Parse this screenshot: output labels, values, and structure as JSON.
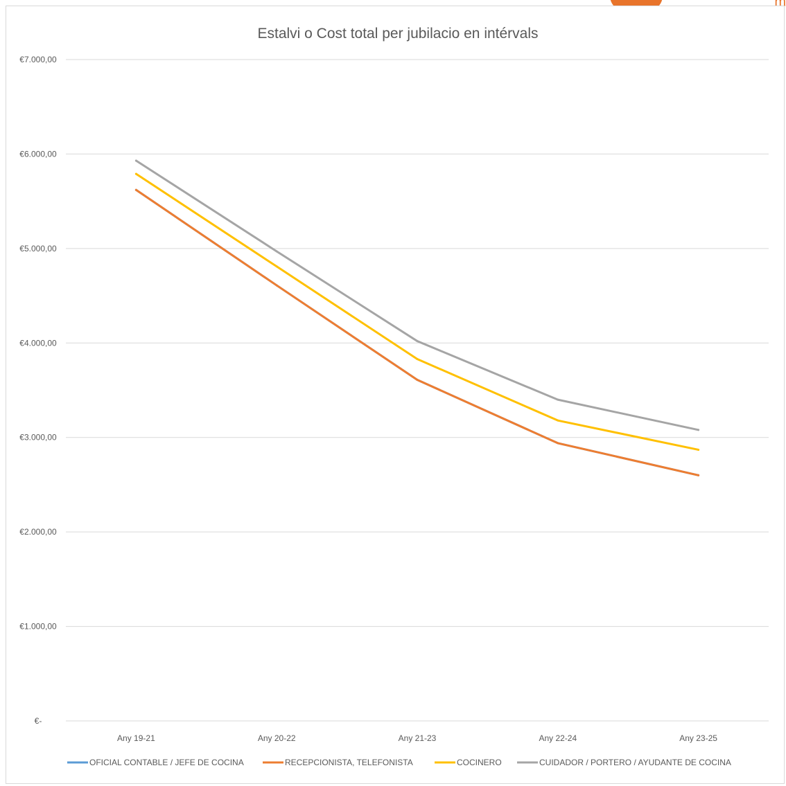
{
  "chart_data": {
    "type": "line",
    "title": "Estalvi o Cost total per jubilacio en intérvals",
    "categories": [
      "Any 19-21",
      "Any 20-22",
      "Any 21-23",
      "Any 22-24",
      "Any 23-25"
    ],
    "y_ticks": [
      {
        "value": 0,
        "label": "€-"
      },
      {
        "value": 1000,
        "label": "€1.000,00"
      },
      {
        "value": 2000,
        "label": "€2.000,00"
      },
      {
        "value": 3000,
        "label": "€3.000,00"
      },
      {
        "value": 4000,
        "label": "€4.000,00"
      },
      {
        "value": 5000,
        "label": "€5.000,00"
      },
      {
        "value": 6000,
        "label": "€6.000,00"
      },
      {
        "value": 7000,
        "label": "€7.000,00"
      }
    ],
    "ylim": [
      0,
      7000
    ],
    "grid": true,
    "legend_position": "bottom",
    "series": [
      {
        "name": "OFICIAL CONTABLE / JEFE DE COCINA",
        "color": "#5b9bd5",
        "values": [
          5620,
          4610,
          3610,
          2940,
          2600
        ]
      },
      {
        "name": "RECEPCIONISTA, TELEFONISTA",
        "color": "#ed7d31",
        "values": [
          5620,
          4610,
          3610,
          2940,
          2600
        ]
      },
      {
        "name": "COCINERO",
        "color": "#ffc000",
        "values": [
          5790,
          4810,
          3830,
          3180,
          2870
        ]
      },
      {
        "name": "CUIDADOR / PORTERO / AYUDANTE DE COCINA",
        "color": "#a5a5a5",
        "values": [
          5930,
          4970,
          4020,
          3400,
          3080
        ]
      }
    ]
  },
  "decor": {
    "corner_mark": "m"
  }
}
